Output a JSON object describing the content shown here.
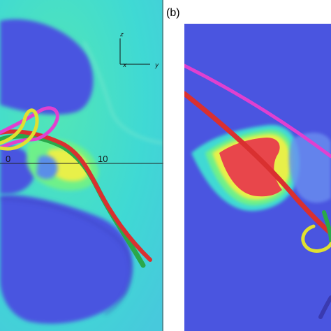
{
  "figure": {
    "panel_b_label": "(b)",
    "axis_z": "z",
    "axis_x": "x",
    "axis_y": "y",
    "tick_zero": "0",
    "tick_ten": "10"
  },
  "colors": {
    "background_blue": "#4a55e0",
    "cyan_field": "#3fd9d4",
    "green_field": "#6ef08a",
    "yellow_field": "#e8f04a",
    "red_region": "#e8464b",
    "tube_red": "#d93030",
    "tube_green": "#2aa84a",
    "tube_magenta": "#e040d0",
    "tube_yellow": "#e0e030"
  }
}
